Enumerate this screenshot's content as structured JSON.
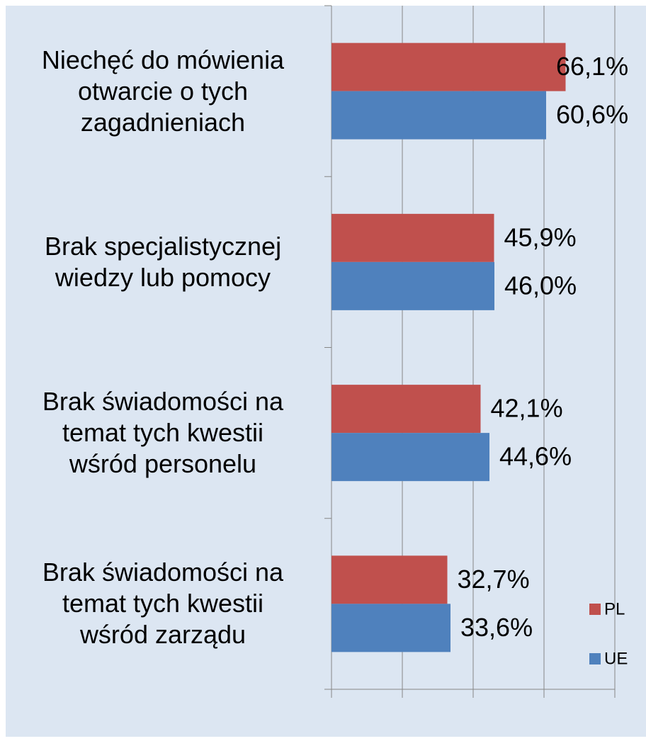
{
  "chart_data": {
    "type": "hbar",
    "categories": [
      "Niechęć do mówienia\notwarcie o tych\nzagadnieniach",
      "Brak specjalistycznej\nwiedzy lub pomocy",
      "Brak świadomości na\ntemat tych kwestii\nwśród personelu",
      "Brak świadomości na\ntemat tych kwestii\nwśród zarządu"
    ],
    "series": [
      {
        "name": "PL",
        "color": "#c0504d",
        "values": [
          66.1,
          45.9,
          42.1,
          32.7
        ],
        "value_labels": [
          "66,1%",
          "45,9%",
          "42,1%",
          "32,7%"
        ]
      },
      {
        "name": "UE",
        "color": "#4f81bd",
        "values": [
          60.6,
          46.0,
          44.6,
          33.6
        ],
        "value_labels": [
          "60,6%",
          "46,0%",
          "44,6%",
          "33,6%"
        ]
      }
    ],
    "xlim": [
      0,
      80
    ],
    "xticks": [
      0,
      20,
      40,
      60,
      80
    ],
    "grid": true,
    "legend": "lower right"
  }
}
